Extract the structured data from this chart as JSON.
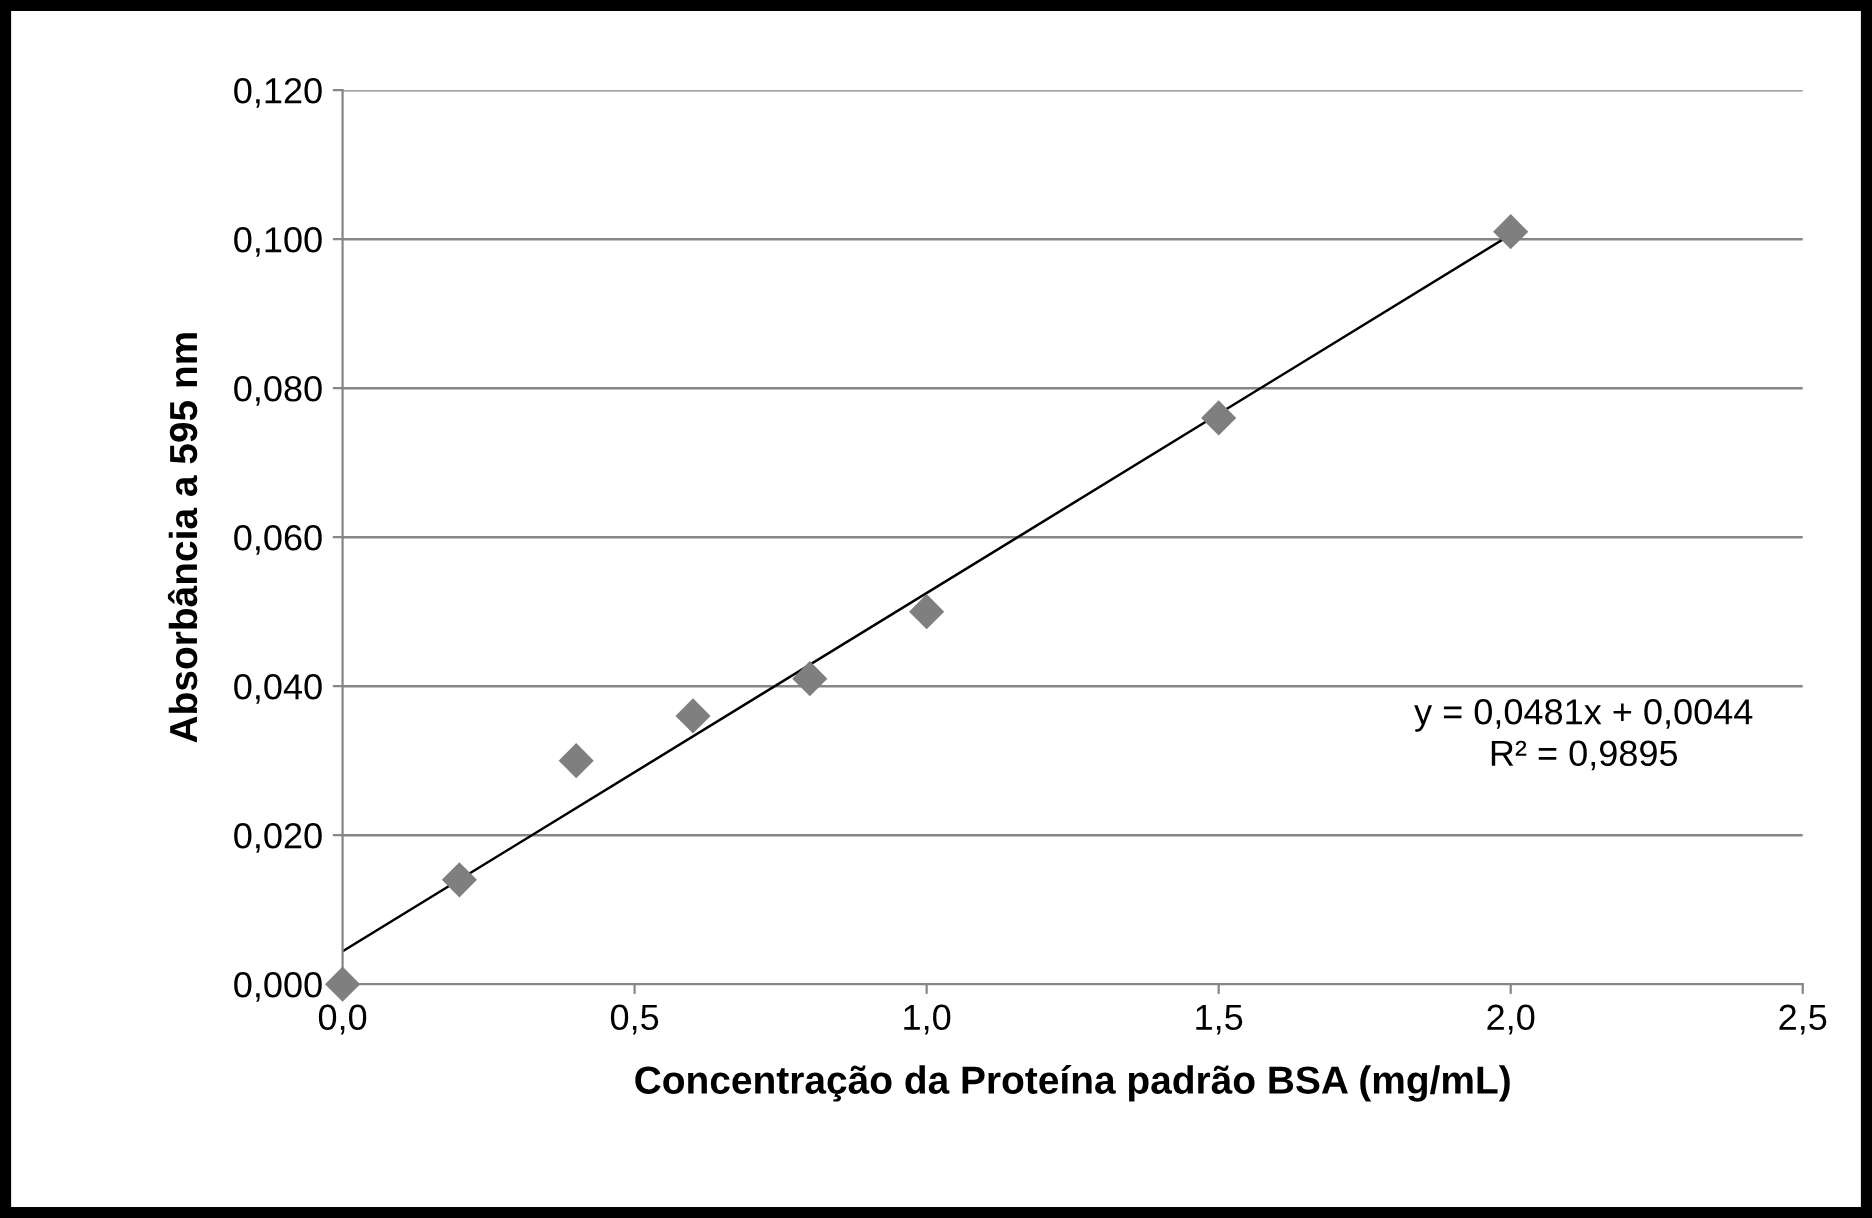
{
  "chart_data": {
    "type": "scatter",
    "xlabel": "Concentração da Proteína padrão BSA (mg/mL)",
    "ylabel": "Absorbância a 595 nm",
    "x": [
      0,
      0.2,
      0.4,
      0.6,
      0.8,
      1.0,
      1.5,
      2.0
    ],
    "series": [
      {
        "color": "#7f7f7f",
        "marker": "diamond",
        "values": [
          0,
          0.014,
          0.03,
          0.036,
          0.041,
          0.05,
          0.076,
          0.101
        ]
      },
      {
        "type": "line",
        "color": "#000000",
        "marker": "none",
        "line_style": "solid",
        "x": [
          0,
          2.0
        ],
        "values": [
          0.0044,
          0.1006
        ]
      }
    ],
    "xlim": [
      0,
      2.5
    ],
    "xticks": [
      {
        "value": 0,
        "label": "0,0"
      },
      {
        "value": 0.5,
        "label": "0,5"
      },
      {
        "value": 1.0,
        "label": "1,0"
      },
      {
        "value": 1.5,
        "label": "1,5"
      },
      {
        "value": 2.0,
        "label": "2,0"
      },
      {
        "value": 2.5,
        "label": "2,5"
      }
    ],
    "ylim": [
      0,
      0.12
    ],
    "yticks": [
      {
        "value": 0,
        "label": "0,000"
      },
      {
        "value": 0.02,
        "label": "0,020"
      },
      {
        "value": 0.04,
        "label": "0,040"
      },
      {
        "value": 0.06,
        "label": "0,060"
      },
      {
        "value": 0.08,
        "label": "0,080"
      },
      {
        "value": 0.1,
        "label": "0,100"
      },
      {
        "value": 0.12,
        "label": "0,120"
      }
    ],
    "grid": "y",
    "annotations": [
      "y = 0,0481x + 0,0044\nR² = 0,9895"
    ]
  }
}
